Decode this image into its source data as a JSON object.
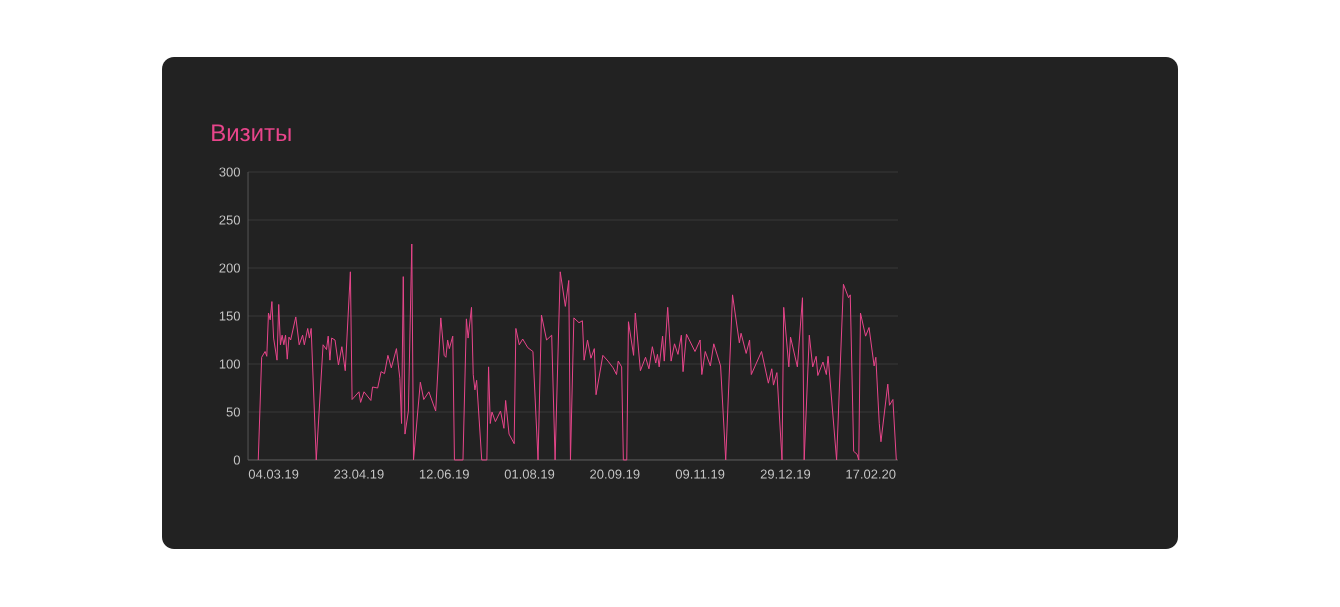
{
  "chart_data": {
    "type": "line",
    "title": "Визиты",
    "x": [
      "2019-02-23",
      "2019-02-25",
      "2019-02-27",
      "2019-02-28",
      "2019-03-01",
      "2019-03-02",
      "2019-03-03",
      "2019-03-04",
      "2019-03-06",
      "2019-03-07",
      "2019-03-08",
      "2019-03-09",
      "2019-03-10",
      "2019-03-11",
      "2019-03-12",
      "2019-03-13",
      "2019-03-14",
      "2019-03-17",
      "2019-03-19",
      "2019-03-21",
      "2019-03-22",
      "2019-03-24",
      "2019-03-25",
      "2019-03-26",
      "2019-03-29",
      "2019-04-02",
      "2019-04-04",
      "2019-04-05",
      "2019-04-06",
      "2019-04-07",
      "2019-04-09",
      "2019-04-11",
      "2019-04-13",
      "2019-04-15",
      "2019-04-18",
      "2019-04-19",
      "2019-04-23",
      "2019-04-24",
      "2019-04-26",
      "2019-04-30",
      "2019-05-01",
      "2019-05-04",
      "2019-05-06",
      "2019-05-08",
      "2019-05-10",
      "2019-05-12",
      "2019-05-15",
      "2019-05-17",
      "2019-05-18",
      "2019-05-19",
      "2019-05-20",
      "2019-05-22",
      "2019-05-24",
      "2019-05-25",
      "2019-05-29",
      "2019-05-31",
      "2019-06-03",
      "2019-06-07",
      "2019-06-10",
      "2019-06-12",
      "2019-06-13",
      "2019-06-14",
      "2019-06-15",
      "2019-06-17",
      "2019-06-18",
      "2019-06-23",
      "2019-06-25",
      "2019-06-26",
      "2019-06-28",
      "2019-06-29",
      "2019-06-30",
      "2019-07-01",
      "2019-07-04",
      "2019-07-07",
      "2019-07-08",
      "2019-07-09",
      "2019-07-10",
      "2019-07-12",
      "2019-07-15",
      "2019-07-17",
      "2019-07-18",
      "2019-07-20",
      "2019-07-23",
      "2019-07-24",
      "2019-07-26",
      "2019-07-28",
      "2019-07-31",
      "2019-08-03",
      "2019-08-06",
      "2019-08-08",
      "2019-08-11",
      "2019-08-14",
      "2019-08-16",
      "2019-08-19",
      "2019-08-22",
      "2019-08-24",
      "2019-08-25",
      "2019-08-27",
      "2019-08-30",
      "2019-09-01",
      "2019-09-02",
      "2019-09-04",
      "2019-09-06",
      "2019-09-08",
      "2019-09-09",
      "2019-09-13",
      "2019-09-16",
      "2019-09-19",
      "2019-09-21",
      "2019-09-22",
      "2019-09-24",
      "2019-09-25",
      "2019-09-27",
      "2019-09-28",
      "2019-10-01",
      "2019-10-02",
      "2019-10-05",
      "2019-10-08",
      "2019-10-10",
      "2019-10-12",
      "2019-10-14",
      "2019-10-15",
      "2019-10-16",
      "2019-10-18",
      "2019-10-19",
      "2019-10-21",
      "2019-10-23",
      "2019-10-25",
      "2019-10-27",
      "2019-10-29",
      "2019-10-30",
      "2019-11-01",
      "2019-11-06",
      "2019-11-09",
      "2019-11-10",
      "2019-11-12",
      "2019-11-15",
      "2019-11-17",
      "2019-11-21",
      "2019-11-24",
      "2019-11-28",
      "2019-12-02",
      "2019-12-03",
      "2019-12-06",
      "2019-12-08",
      "2019-12-09",
      "2019-12-15",
      "2019-12-19",
      "2019-12-21",
      "2019-12-22",
      "2019-12-24",
      "2019-12-27",
      "2019-12-28",
      "2019-12-31",
      "2020-01-01",
      "2020-01-05",
      "2020-01-08",
      "2020-01-09",
      "2020-01-12",
      "2020-01-14",
      "2020-01-16",
      "2020-01-17",
      "2020-01-20",
      "2020-01-22",
      "2020-01-23",
      "2020-01-28",
      "2020-02-01",
      "2020-02-04",
      "2020-02-05",
      "2020-02-07",
      "2020-02-09",
      "2020-02-10",
      "2020-02-11",
      "2020-02-14",
      "2020-02-16",
      "2020-02-19",
      "2020-02-20",
      "2020-02-22",
      "2020-02-23",
      "2020-02-27",
      "2020-02-28",
      "2020-03-01",
      "2020-03-03"
    ],
    "series": [
      {
        "color": "#e8458b",
        "values": [
          0,
          107,
          113,
          108,
          153,
          146,
          165,
          127,
          104,
          162,
          120,
          130,
          120,
          130,
          105,
          128,
          125,
          149,
          120,
          130,
          120,
          137,
          127,
          137,
          0,
          120,
          115,
          129,
          104,
          127,
          125,
          99,
          118,
          93,
          196,
          63,
          71,
          60,
          71,
          62,
          76,
          75,
          92,
          90,
          109,
          96,
          116,
          85,
          38,
          191,
          27,
          51,
          225,
          0,
          81,
          63,
          71,
          51,
          148,
          109,
          107,
          125,
          116,
          129,
          0,
          0,
          147,
          127,
          159,
          89,
          73,
          83,
          0,
          0,
          97,
          38,
          50,
          40,
          51,
          33,
          62,
          27,
          17,
          137,
          120,
          126,
          117,
          113,
          0,
          151,
          125,
          130,
          0,
          196,
          160,
          187,
          0,
          148,
          143,
          145,
          104,
          125,
          106,
          116,
          68,
          109,
          103,
          96,
          89,
          103,
          97,
          0,
          0,
          144,
          109,
          153,
          93,
          107,
          95,
          118,
          101,
          110,
          97,
          129,
          103,
          159,
          103,
          121,
          110,
          130,
          92,
          131,
          113,
          125,
          89,
          113,
          98,
          121,
          98,
          0,
          172,
          122,
          132,
          111,
          125,
          89,
          113,
          80,
          95,
          78,
          91,
          0,
          159,
          97,
          128,
          97,
          169,
          0,
          130,
          97,
          108,
          88,
          102,
          89,
          108,
          0,
          183,
          169,
          172,
          9,
          6,
          0,
          153,
          129,
          138,
          98,
          107,
          38,
          19,
          79,
          57,
          63,
          0
        ]
      }
    ],
    "xlim": [
      "2019-02-17",
      "2020-03-04"
    ],
    "xticks": [
      {
        "value": "2019-03-04",
        "label": "04.03.19"
      },
      {
        "value": "2019-04-23",
        "label": "23.04.19"
      },
      {
        "value": "2019-06-12",
        "label": "12.06.19"
      },
      {
        "value": "2019-08-01",
        "label": "01.08.19"
      },
      {
        "value": "2019-09-20",
        "label": "20.09.19"
      },
      {
        "value": "2019-11-09",
        "label": "09.11.19"
      },
      {
        "value": "2019-12-29",
        "label": "29.12.19"
      },
      {
        "value": "2020-02-17",
        "label": "17.02.20"
      }
    ],
    "ylim": [
      0,
      300
    ],
    "yticks": [
      0,
      50,
      100,
      150,
      200,
      250,
      300
    ],
    "grid": "y"
  }
}
